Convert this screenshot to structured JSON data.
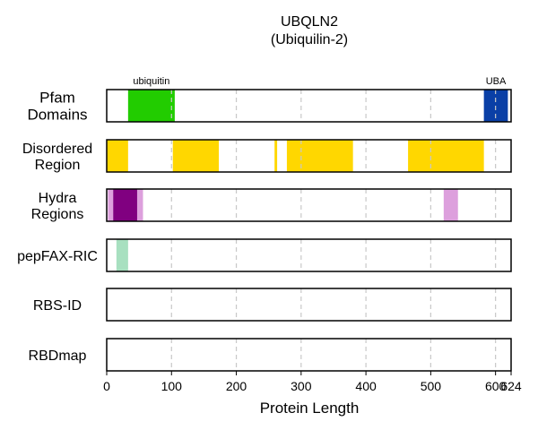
{
  "chart_data": {
    "type": "bar",
    "title": "UBQLN2",
    "subtitle": "(Ubiquilin-2)",
    "xlabel": "Protein Length",
    "xlim": [
      0,
      624
    ],
    "xticks": [
      0,
      100,
      200,
      300,
      400,
      500,
      600,
      624
    ],
    "grid": true,
    "tracks": [
      {
        "label_lines": [
          "Pfam",
          "Domains"
        ],
        "segments": [
          {
            "start": 33,
            "end": 105,
            "color": "#22cc00",
            "label": "ubiquitin"
          },
          {
            "start": 582,
            "end": 619,
            "color": "#0a3fa6",
            "label": "UBA"
          }
        ]
      },
      {
        "label_lines": [
          "Disordered",
          "Region"
        ],
        "segments": [
          {
            "start": 0,
            "end": 33,
            "color": "#ffd700"
          },
          {
            "start": 102,
            "end": 173,
            "color": "#ffd700"
          },
          {
            "start": 259,
            "end": 263,
            "color": "#ffd700"
          },
          {
            "start": 278,
            "end": 380,
            "color": "#ffd700"
          },
          {
            "start": 465,
            "end": 582,
            "color": "#ffd700"
          }
        ]
      },
      {
        "label_lines": [
          "Hydra",
          "Regions"
        ],
        "segments": [
          {
            "start": 2,
            "end": 10,
            "color": "#dda0dd"
          },
          {
            "start": 10,
            "end": 47,
            "color": "#800080"
          },
          {
            "start": 47,
            "end": 56,
            "color": "#dda0dd"
          },
          {
            "start": 520,
            "end": 542,
            "color": "#dda0dd"
          }
        ]
      },
      {
        "label_lines": [
          "pepFAX-RIC"
        ],
        "segments": [
          {
            "start": 15,
            "end": 33,
            "color": "#a8e0c0"
          }
        ]
      },
      {
        "label_lines": [
          "RBS-ID"
        ],
        "segments": []
      },
      {
        "label_lines": [
          "RBDmap"
        ],
        "segments": []
      }
    ]
  }
}
